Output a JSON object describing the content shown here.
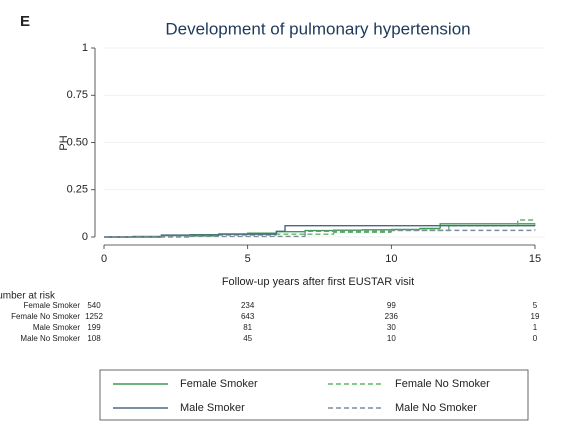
{
  "chart_data": {
    "type": "step",
    "panel_label": "E",
    "title": "Development of pulmonary hypertension",
    "x_label": "Follow-up years after first EUSTAR visit",
    "y_label": "PH",
    "xlim": [
      0,
      15
    ],
    "xticks": [
      0,
      5,
      10,
      15
    ],
    "ylim": [
      0,
      1
    ],
    "yticks": [
      0,
      0.25,
      {
        "value": 0.5,
        "label": "0.50"
      },
      0.75,
      1
    ],
    "grid": true,
    "series": [
      {
        "name": "Female Smoker",
        "color": "#3f9a52",
        "dash": false,
        "x": [
          0,
          1,
          2,
          3,
          4,
          5,
          6,
          7,
          8,
          9,
          10,
          11,
          11.7,
          15
        ],
        "values": [
          0,
          0.003,
          0.008,
          0.012,
          0.016,
          0.02,
          0.028,
          0.034,
          0.036,
          0.038,
          0.04,
          0.045,
          0.07,
          0.072
        ]
      },
      {
        "name": "Female No Smoker",
        "color": "#5cb86c",
        "dash": true,
        "x": [
          0,
          2,
          4,
          6,
          8,
          10,
          12,
          14.4,
          15
        ],
        "values": [
          0,
          0.005,
          0.01,
          0.015,
          0.025,
          0.035,
          0.06,
          0.09,
          0.09
        ]
      },
      {
        "name": "Male Smoker",
        "color": "#4b6883",
        "dash": false,
        "x": [
          0,
          2,
          4,
          6,
          6.3,
          15
        ],
        "values": [
          0,
          0.01,
          0.015,
          0.03,
          0.06,
          0.065
        ]
      },
      {
        "name": "Male No Smoker",
        "color": "#7f8d9b",
        "dash": true,
        "x": [
          0,
          3,
          7,
          10,
          15
        ],
        "values": [
          0,
          0.003,
          0.03,
          0.035,
          0.04
        ]
      }
    ],
    "risk_table": {
      "title": "Number at risk",
      "rows": [
        {
          "name": "Female Smoker",
          "counts": [
            "540",
            "234",
            "99",
            "5"
          ]
        },
        {
          "name": "Female No Smoker",
          "counts": [
            "1252",
            "643",
            "236",
            "19"
          ]
        },
        {
          "name": "Male Smoker",
          "counts": [
            "199",
            "81",
            "30",
            "1"
          ]
        },
        {
          "name": "Male No Smoker",
          "counts": [
            "108",
            "45",
            "10",
            "0"
          ]
        }
      ]
    }
  }
}
